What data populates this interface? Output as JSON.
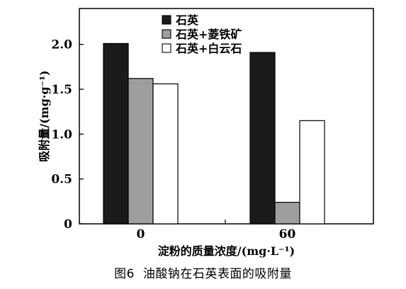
{
  "chart_data": {
    "type": "bar",
    "categories": [
      "0",
      "60"
    ],
    "series": [
      {
        "name": "石英",
        "values": [
          2.01,
          1.91
        ],
        "color": "#1a1a1a"
      },
      {
        "name": "石英+菱铁矿",
        "values": [
          1.62,
          0.24
        ],
        "color": "#9e9e9e"
      },
      {
        "name": "石英+白云石",
        "values": [
          1.56,
          1.15
        ],
        "color": "#ffffff"
      }
    ],
    "xlabel": "淀粉的质量浓度/(mg·L⁻¹)",
    "ylabel": "吸附量/(mg·g⁻¹)",
    "ylim": [
      0,
      2.4
    ],
    "yticks": [
      0,
      0.5,
      1.0,
      1.5,
      2.0
    ],
    "ytick_labels": [
      "0",
      "0.5",
      "1.0",
      "1.5",
      "2.0"
    ],
    "grid": false,
    "legend_position": "top-center"
  },
  "caption": {
    "label": "图6",
    "text": "油酸钠在石英表面的吸附量"
  }
}
